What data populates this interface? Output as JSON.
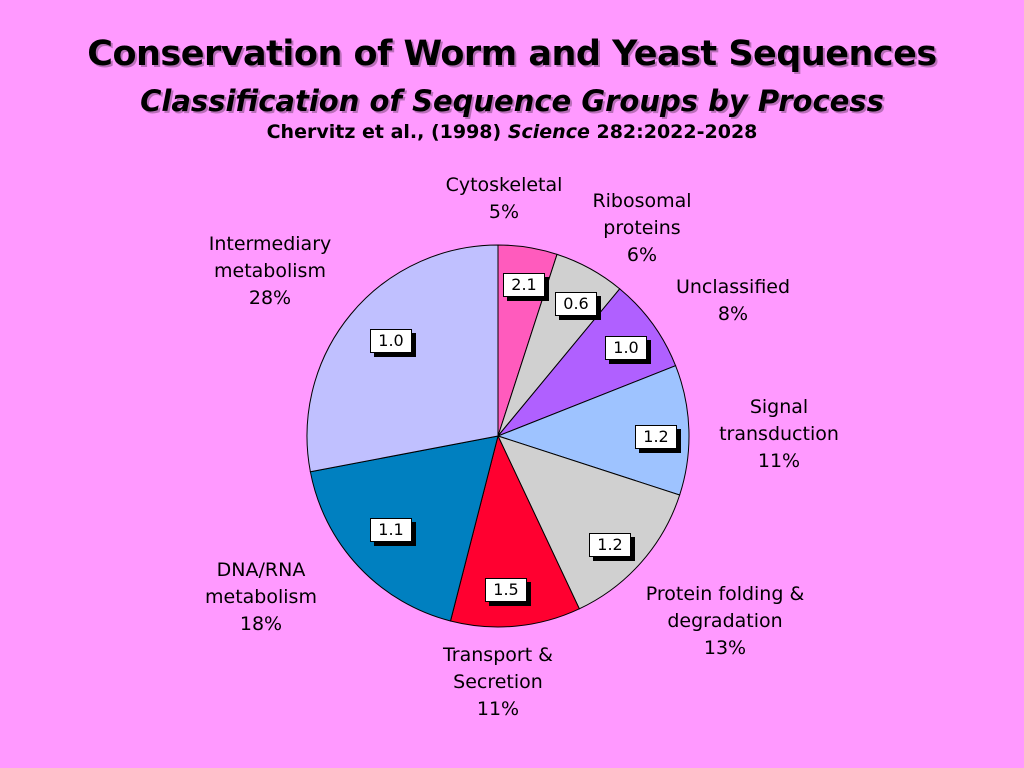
{
  "slide": {
    "title": "Conservation of Worm and Yeast Sequences",
    "subtitle": "Classification of Sequence Groups by Process",
    "citation_authors": "Chervitz et al., (1998) ",
    "citation_journal": "Science",
    "citation_ref": " 282:2022-2028",
    "background_color": "#ff99ff"
  },
  "chart_data": {
    "type": "pie",
    "slices": [
      {
        "label_lines": [
          "Cytoskeletal",
          "5%"
        ],
        "percent": 5,
        "ratio": "2.1",
        "color": "#ff5bbd"
      },
      {
        "label_lines": [
          "Ribosomal",
          "proteins",
          "6%"
        ],
        "percent": 6,
        "ratio": "0.6",
        "color": "#d0d0d0"
      },
      {
        "label_lines": [
          "Unclassified",
          "8%"
        ],
        "percent": 8,
        "ratio": "1.0",
        "color": "#b060ff"
      },
      {
        "label_lines": [
          "Signal",
          "transduction",
          "11%"
        ],
        "percent": 11,
        "ratio": "1.2",
        "color": "#9ec3ff"
      },
      {
        "label_lines": [
          "Protein folding &",
          "degradation",
          "13%"
        ],
        "percent": 13,
        "ratio": "1.2",
        "color": "#d0d0d0"
      },
      {
        "label_lines": [
          "Transport &",
          "Secretion",
          "11%"
        ],
        "percent": 11,
        "ratio": "1.5",
        "color": "#ff0030"
      },
      {
        "label_lines": [
          "DNA/RNA",
          "metabolism",
          "18%"
        ],
        "percent": 18,
        "ratio": "1.1",
        "color": "#0080c0"
      },
      {
        "label_lines": [
          "Intermediary",
          "metabolism",
          "28%"
        ],
        "percent": 28,
        "ratio": "1.0",
        "color": "#c0c0ff"
      }
    ]
  }
}
